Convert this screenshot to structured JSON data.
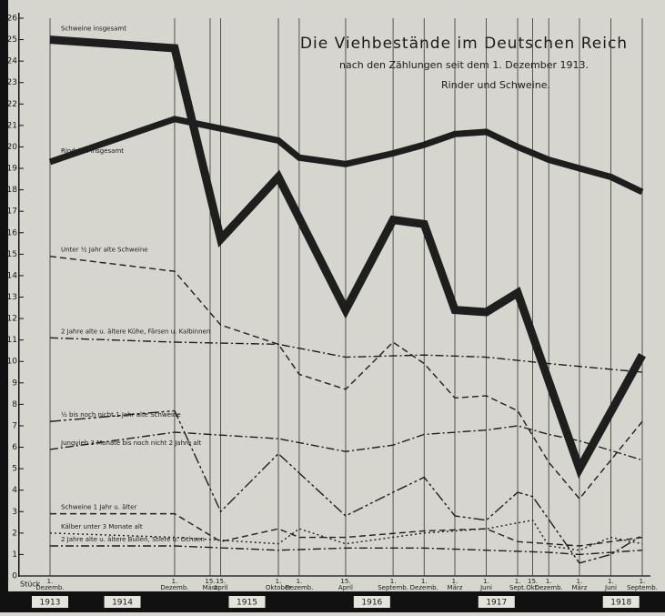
{
  "chart_data": {
    "type": "line",
    "title": "Die Viehbestände im Deutschen Reich",
    "subtitle": "nach den Zählungen seit dem 1. Dezember 1913.",
    "subtitle2": "Rinder und Schweine.",
    "y_label": "Stück",
    "ylim": [
      0,
      26
    ],
    "yticks": [
      0,
      1,
      2,
      3,
      4,
      5,
      6,
      7,
      8,
      9,
      10,
      11,
      12,
      13,
      14,
      15,
      16,
      17,
      18,
      19,
      20,
      21,
      22,
      23,
      24,
      25,
      26
    ],
    "xlim": [
      "1913-12-01",
      "1918-09-01"
    ],
    "xticks": [
      {
        "value": "1913-12-01",
        "day": "1.",
        "label": "Dezemb."
      },
      {
        "value": "1914-12-01",
        "day": "1.",
        "label": "Dezemb."
      },
      {
        "value": "1915-03-15",
        "day": "15.",
        "label": "März"
      },
      {
        "value": "1915-04-15",
        "day": "15.",
        "label": "April"
      },
      {
        "value": "1915-10-01",
        "day": "1.",
        "label": "Oktober"
      },
      {
        "value": "1915-12-01",
        "day": "1.",
        "label": "Dezemb."
      },
      {
        "value": "1916-04-15",
        "day": "15.",
        "label": "April"
      },
      {
        "value": "1916-09-01",
        "day": "1.",
        "label": "Septemb."
      },
      {
        "value": "1916-12-01",
        "day": "1.",
        "label": "Dezemb."
      },
      {
        "value": "1917-03-01",
        "day": "1.",
        "label": "März"
      },
      {
        "value": "1917-06-01",
        "day": "1.",
        "label": "Juni"
      },
      {
        "value": "1917-09-01",
        "day": "1.",
        "label": "Sept."
      },
      {
        "value": "1917-10-15",
        "day": "15.",
        "label": "Okt."
      },
      {
        "value": "1917-12-01",
        "day": "1.",
        "label": "Dezemb."
      },
      {
        "value": "1918-03-01",
        "day": "1.",
        "label": "März"
      },
      {
        "value": "1918-06-01",
        "day": "1.",
        "label": "Juni"
      },
      {
        "value": "1918-09-01",
        "day": "1.",
        "label": "Septemb."
      }
    ],
    "years": [
      "1913",
      "1914",
      "1915",
      "1916",
      "1917",
      "1918"
    ],
    "series": [
      {
        "name": "Schweine insgesamt",
        "color": "#1e1e1e",
        "dash": "solid",
        "width": 9,
        "x": [
          "1913-12-01",
          "1914-12-01",
          "1915-04-15",
          "1915-10-01",
          "1916-04-15",
          "1916-09-01",
          "1916-12-01",
          "1917-03-01",
          "1917-06-01",
          "1917-09-01",
          "1918-03-01",
          "1918-09-01"
        ],
        "values": [
          25.0,
          24.6,
          15.7,
          18.6,
          12.4,
          16.6,
          16.4,
          12.4,
          12.3,
          13.2,
          5.0,
          10.3
        ]
      },
      {
        "name": "Rindvieh insgesamt",
        "color": "#1e1e1e",
        "dash": "solid",
        "width": 7,
        "x": [
          "1913-12-01",
          "1914-12-01",
          "1915-10-01",
          "1915-12-01",
          "1916-04-15",
          "1916-09-01",
          "1916-12-01",
          "1917-03-01",
          "1917-06-01",
          "1917-09-01",
          "1917-12-01",
          "1918-03-01",
          "1918-06-01",
          "1918-09-01"
        ],
        "values": [
          19.3,
          21.3,
          20.3,
          19.5,
          19.2,
          19.7,
          20.1,
          20.6,
          20.7,
          20.0,
          19.4,
          19.0,
          18.6,
          17.9
        ]
      },
      {
        "name": "Unter ½ Jahr alte Schweine",
        "color": "#1e1e1e",
        "dash": "dashed",
        "width": 1.4,
        "x": [
          "1913-12-01",
          "1914-12-01",
          "1915-04-15",
          "1915-10-01",
          "1915-12-01",
          "1916-04-15",
          "1916-09-01",
          "1916-12-01",
          "1917-03-01",
          "1917-06-01",
          "1917-09-01",
          "1917-12-01",
          "1918-03-01",
          "1918-06-01",
          "1918-09-01"
        ],
        "values": [
          14.9,
          14.2,
          11.7,
          10.8,
          9.4,
          8.7,
          10.9,
          9.9,
          8.3,
          8.4,
          7.7,
          5.3,
          3.6,
          5.4,
          7.2
        ]
      },
      {
        "name": "2 Jahre alte u. ältere Kühe, Färsen u. Kalbinnen",
        "color": "#1e1e1e",
        "dash": "dashdot",
        "width": 1.4,
        "x": [
          "1913-12-01",
          "1914-12-01",
          "1915-10-01",
          "1916-04-15",
          "1916-12-01",
          "1917-06-01",
          "1917-12-01",
          "1918-09-01"
        ],
        "values": [
          11.1,
          10.9,
          10.8,
          10.2,
          10.3,
          10.2,
          9.9,
          9.5
        ]
      },
      {
        "name": "½ bis noch nicht 1 Jahr alte Schweine",
        "color": "#1e1e1e",
        "dash": "longdash",
        "width": 1.4,
        "x": [
          "1913-12-01",
          "1914-12-01",
          "1915-04-15",
          "1915-10-01",
          "1915-12-01",
          "1916-04-15",
          "1916-09-01",
          "1916-12-01",
          "1917-03-01",
          "1917-06-01",
          "1917-09-01",
          "1917-10-15",
          "1918-03-01",
          "1918-06-01",
          "1918-09-01"
        ],
        "values": [
          7.2,
          7.7,
          3.0,
          5.7,
          4.8,
          2.8,
          3.9,
          4.6,
          2.8,
          2.6,
          3.9,
          3.7,
          0.6,
          1.0,
          1.9
        ]
      },
      {
        "name": "Jungvieh 3 Monate bis noch nicht 2 Jahre alt",
        "color": "#1e1e1e",
        "dash": "dashdot",
        "width": 1.4,
        "x": [
          "1913-12-01",
          "1914-12-01",
          "1915-10-01",
          "1916-04-15",
          "1916-09-01",
          "1916-12-01",
          "1917-06-01",
          "1917-09-01",
          "1917-12-01",
          "1918-03-01",
          "1918-09-01"
        ],
        "values": [
          5.9,
          6.7,
          6.4,
          5.8,
          6.1,
          6.6,
          6.8,
          7.0,
          6.6,
          6.3,
          5.4
        ]
      },
      {
        "name": "Schweine 1 Jahr u. älter",
        "color": "#1e1e1e",
        "dash": "dashed",
        "width": 1.4,
        "x": [
          "1913-12-01",
          "1914-12-01",
          "1915-04-15",
          "1915-10-01",
          "1915-12-01",
          "1916-04-15",
          "1916-12-01",
          "1917-06-01",
          "1917-09-01",
          "1918-03-01",
          "1918-09-01"
        ],
        "values": [
          2.9,
          2.9,
          1.6,
          2.2,
          1.8,
          1.8,
          2.1,
          2.2,
          1.6,
          1.4,
          1.8
        ]
      },
      {
        "name": "Kälber unter 3 Monate alt",
        "color": "#1e1e1e",
        "dash": "dotted",
        "width": 1.4,
        "x": [
          "1913-12-01",
          "1914-12-01",
          "1915-10-01",
          "1915-12-01",
          "1916-04-15",
          "1916-12-01",
          "1917-06-01",
          "1917-10-15",
          "1917-12-01",
          "1918-03-01",
          "1918-06-01",
          "1918-09-01"
        ],
        "values": [
          2.0,
          1.8,
          1.5,
          2.2,
          1.5,
          2.0,
          2.2,
          2.6,
          1.4,
          1.2,
          1.8,
          1.5
        ]
      },
      {
        "name": "2 Jahre alte u. ältere Bullen, Stiere u. Ochsen",
        "color": "#1e1e1e",
        "dash": "dashdot",
        "width": 1.4,
        "x": [
          "1913-12-01",
          "1914-12-01",
          "1915-10-01",
          "1916-04-15",
          "1916-12-01",
          "1917-06-01",
          "1917-12-01",
          "1918-03-01",
          "1918-09-01"
        ],
        "values": [
          1.4,
          1.4,
          1.2,
          1.3,
          1.3,
          1.2,
          1.1,
          1.0,
          1.2
        ]
      }
    ]
  }
}
